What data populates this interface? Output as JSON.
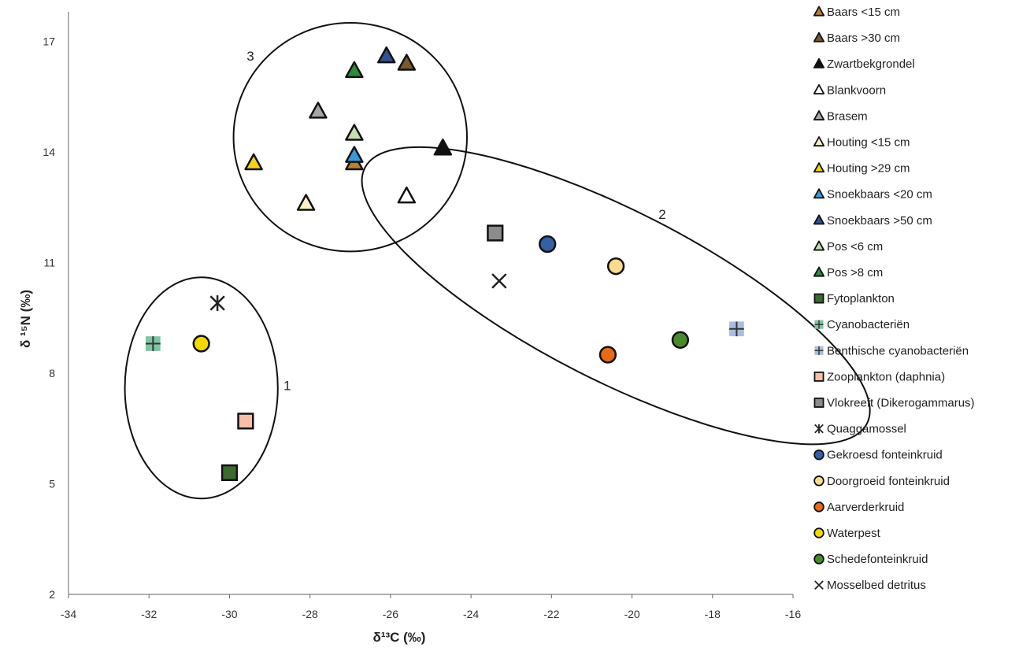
{
  "chart_data": {
    "type": "scatter",
    "xlabel": "δ¹³C (‰)",
    "ylabel": "δ ¹⁵N (‰)",
    "xlim": [
      -34,
      -16
    ],
    "ylim": [
      2,
      17.8
    ],
    "x_ticks": [
      -34,
      -32,
      -30,
      -28,
      -26,
      -24,
      -22,
      -20,
      -18,
      -16
    ],
    "y_ticks": [
      2,
      5,
      8,
      11,
      14,
      17
    ],
    "grid": false,
    "legend_position": "right",
    "groups": [
      {
        "label": "1",
        "center": [
          -30.7,
          7.6
        ],
        "radius": [
          1.9,
          3.0
        ]
      },
      {
        "label": "2",
        "center": [
          -20.4,
          10.1
        ],
        "radius": [
          7.0,
          2.3
        ],
        "rotation_deg": 27
      },
      {
        "label": "3",
        "center": [
          -27.0,
          14.4
        ],
        "radius": [
          2.9,
          3.1
        ]
      }
    ],
    "series": [
      {
        "name": "Baars <15 cm",
        "marker": "triangle",
        "color": "#b8812a",
        "x": -26.9,
        "y": 13.7
      },
      {
        "name": "Baars >30 cm",
        "marker": "triangle",
        "color": "#7a5a2a",
        "x": -25.6,
        "y": 16.4
      },
      {
        "name": "Zwartbekgrondel",
        "marker": "triangle",
        "color": "#111111",
        "x": -24.7,
        "y": 14.1
      },
      {
        "name": "Blankvoorn",
        "marker": "triangle",
        "color": "#ffffff",
        "x": -25.6,
        "y": 12.8
      },
      {
        "name": "Brasem",
        "marker": "triangle",
        "color": "#a6a6a6",
        "x": -27.8,
        "y": 15.1
      },
      {
        "name": "Houting <15 cm",
        "marker": "triangle",
        "color": "#fdf2c6",
        "x": -28.1,
        "y": 12.6
      },
      {
        "name": "Houting >29 cm",
        "marker": "triangle",
        "color": "#f2d21a",
        "x": -29.4,
        "y": 13.7
      },
      {
        "name": "Snoekbaars <20 cm",
        "marker": "triangle",
        "color": "#3a9ad9",
        "x": -26.9,
        "y": 13.9
      },
      {
        "name": "Snoekbaars >50 cm",
        "marker": "triangle",
        "color": "#33508f",
        "x": -26.1,
        "y": 16.6
      },
      {
        "name": "Pos <6 cm",
        "marker": "triangle",
        "color": "#c5dcb5",
        "x": -26.9,
        "y": 14.5
      },
      {
        "name": "Pos >8 cm",
        "marker": "triangle",
        "color": "#2e8b3e",
        "x": -26.9,
        "y": 16.2
      },
      {
        "name": "Fytoplankton",
        "marker": "square",
        "color": "#3d6b2e",
        "x": -30.0,
        "y": 5.3
      },
      {
        "name": "Cyanobacteriën",
        "marker": "square-plus",
        "color": "#7fc4a4",
        "x": -31.9,
        "y": 8.8
      },
      {
        "name": "Benthische cyanobacteriën",
        "marker": "square-plus",
        "color": "#a9bde0",
        "x": -17.4,
        "y": 9.2
      },
      {
        "name": "Zooplankton (daphnia)",
        "marker": "square",
        "color": "#f6bfa6",
        "x": -29.6,
        "y": 6.7
      },
      {
        "name": "Vlokreeft (Dikerogammarus)",
        "marker": "square",
        "color": "#8c8c8c",
        "x": -23.4,
        "y": 11.8
      },
      {
        "name": "Quaggamossel",
        "marker": "star",
        "color": "#222222",
        "x": -30.3,
        "y": 9.9
      },
      {
        "name": "Gekroesd fonteinkruid",
        "marker": "circle",
        "color": "#3560a6",
        "x": -22.1,
        "y": 11.5
      },
      {
        "name": "Doorgroeid fonteinkruid",
        "marker": "circle",
        "color": "#fbdc8e",
        "x": -20.4,
        "y": 10.9
      },
      {
        "name": "Aarverderkruid",
        "marker": "circle",
        "color": "#e76a16",
        "x": -20.6,
        "y": 8.5
      },
      {
        "name": "Waterpest",
        "marker": "circle",
        "color": "#f4d900",
        "x": -30.7,
        "y": 8.8
      },
      {
        "name": "Schedefonteinkruid",
        "marker": "circle",
        "color": "#4a8a2c",
        "x": -18.8,
        "y": 8.9
      },
      {
        "name": "Mosselbed detritus",
        "marker": "x",
        "color": "#222222",
        "x": -23.3,
        "y": 10.5
      }
    ]
  }
}
